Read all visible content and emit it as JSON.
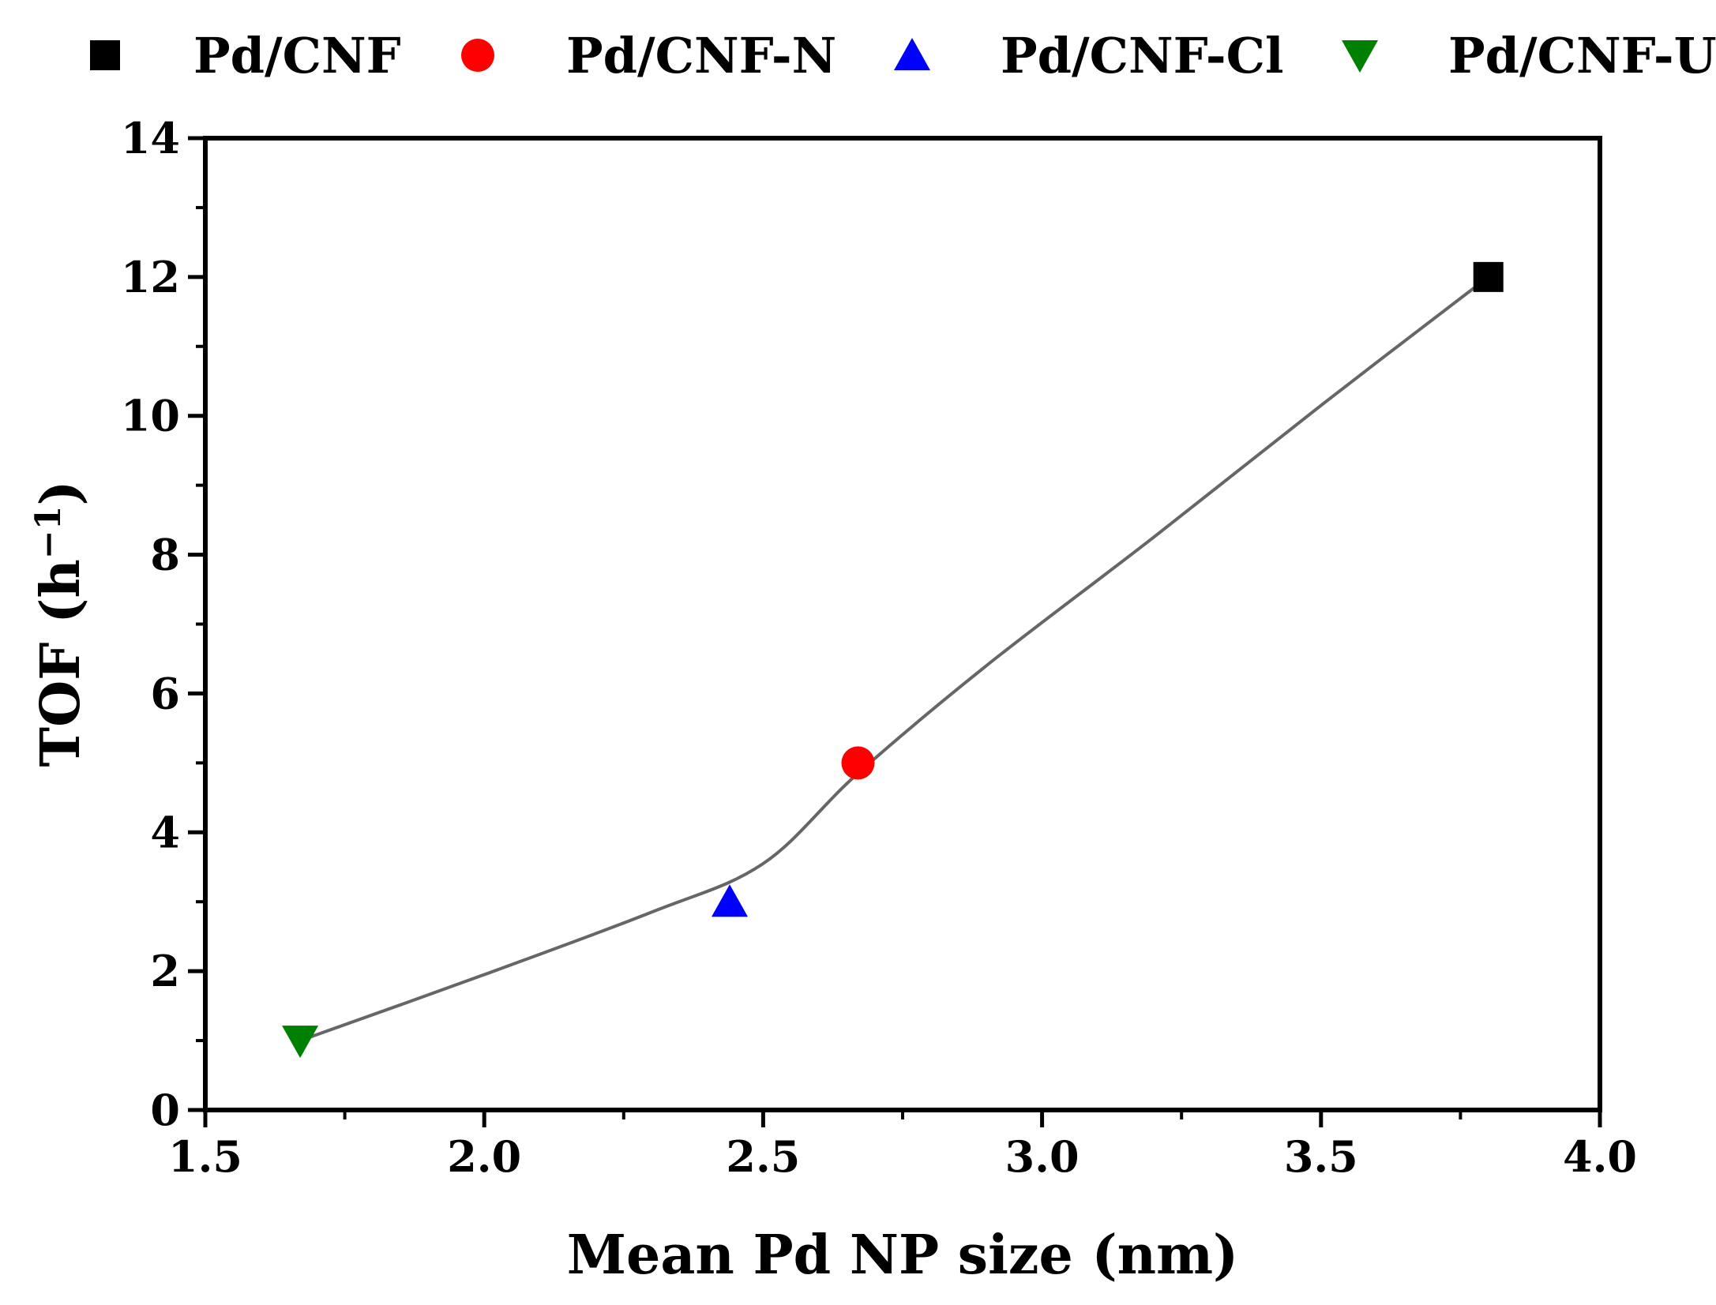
{
  "chart_data": {
    "type": "scatter",
    "title": "",
    "xlabel": "Mean Pd NP size (nm)",
    "ylabel": {
      "main": "TOF (h",
      "sup": "−1",
      "close": ")"
    },
    "xlim": [
      1.5,
      4.0
    ],
    "ylim": [
      0,
      14
    ],
    "x_ticks": [
      1.5,
      2.0,
      2.5,
      3.0,
      3.5,
      4.0
    ],
    "x_tick_labels": [
      "1.5",
      "2.0",
      "2.5",
      "3.0",
      "3.5",
      "4.0"
    ],
    "y_ticks": [
      0,
      2,
      4,
      6,
      8,
      10,
      12,
      14
    ],
    "y_tick_labels": [
      "0",
      "2",
      "4",
      "6",
      "8",
      "10",
      "12",
      "14"
    ],
    "legend_position": "top",
    "series": [
      {
        "name": "Pd/CNF",
        "marker": "square",
        "color": "#000000",
        "x": [
          3.8
        ],
        "y": [
          12
        ]
      },
      {
        "name": "Pd/CNF-N",
        "marker": "circle",
        "color": "#ff0000",
        "x": [
          2.67
        ],
        "y": [
          5
        ]
      },
      {
        "name": "Pd/CNF-Cl",
        "marker": "triangle-up",
        "color": "#0000ff",
        "x": [
          2.44
        ],
        "y": [
          3
        ]
      },
      {
        "name": "Pd/CNF-U",
        "marker": "triangle-down",
        "color": "#008000",
        "x": [
          1.67
        ],
        "y": [
          1
        ]
      }
    ],
    "fit_curve": {
      "color": "#666666",
      "x": [
        1.67,
        2.0,
        2.3,
        2.5,
        2.67,
        2.9,
        3.2,
        3.5,
        3.8
      ],
      "y": [
        1.0,
        1.95,
        2.85,
        3.55,
        4.85,
        6.4,
        8.25,
        10.15,
        12.0
      ]
    }
  }
}
